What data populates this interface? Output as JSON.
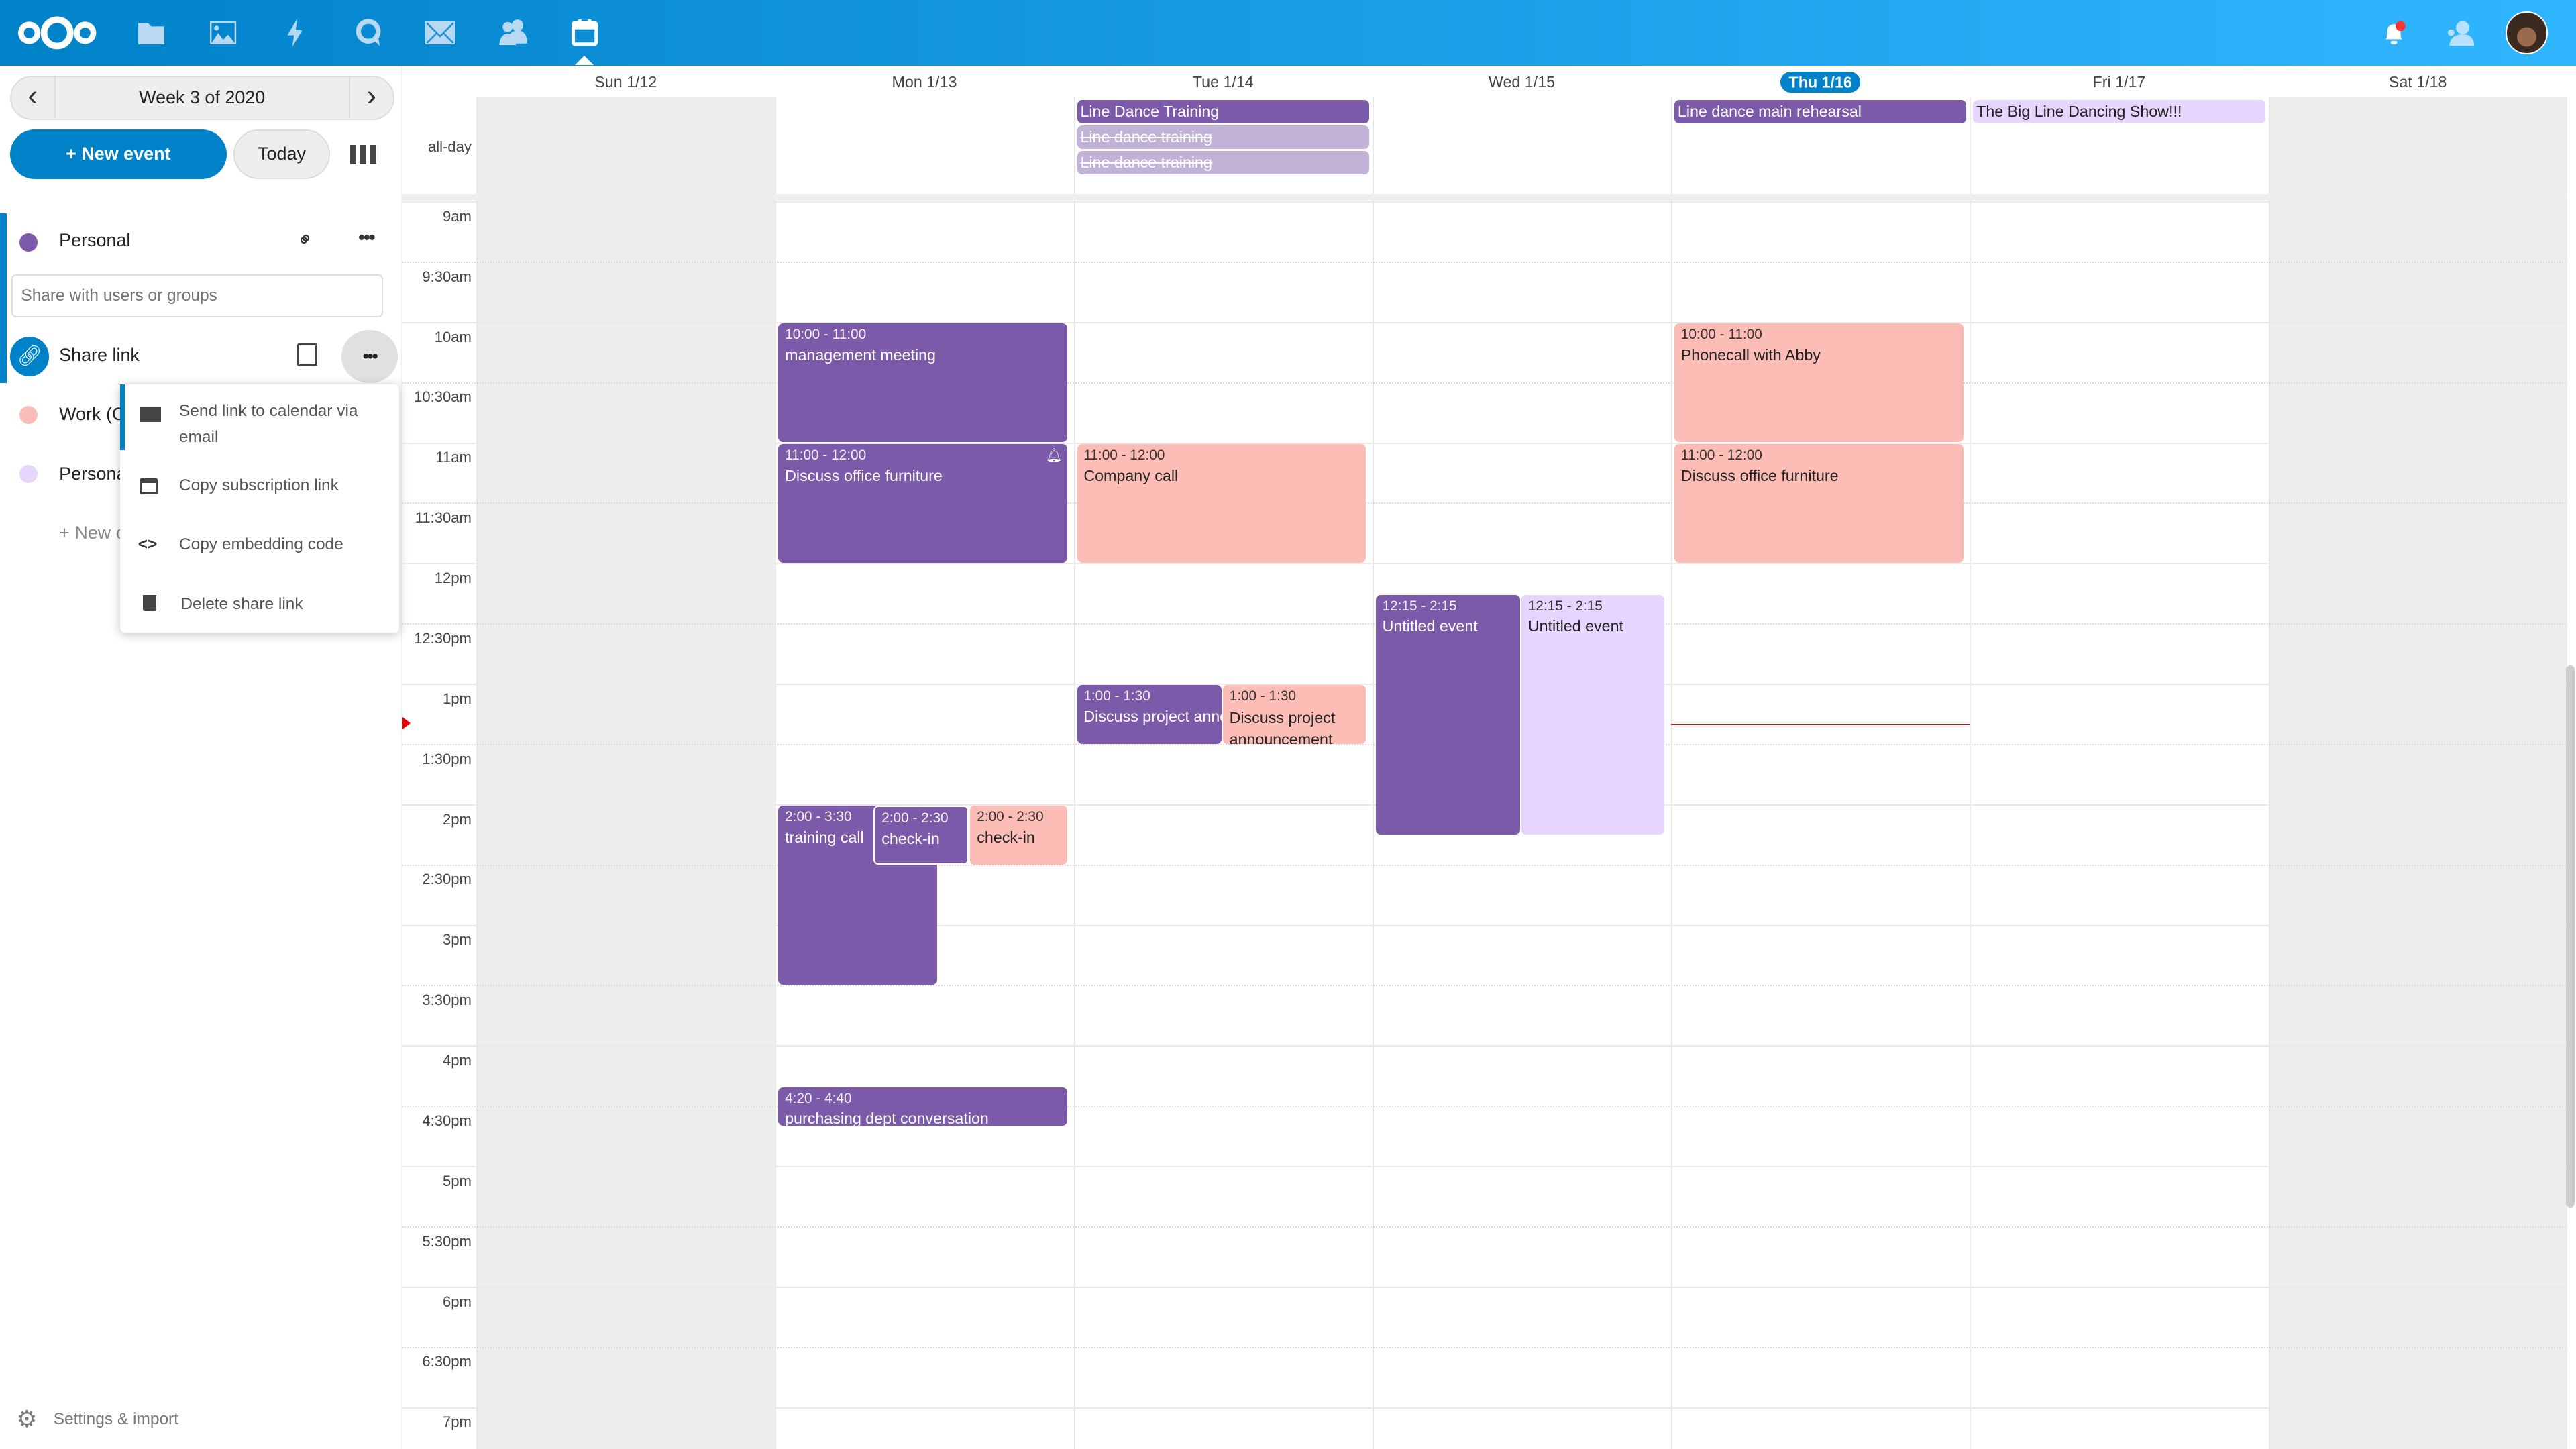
{
  "colors": {
    "accent": "#0082c9",
    "purple": "#7b5ba9",
    "pink": "#fdbdb7",
    "lavender": "#e6d5fc",
    "faded": "#c2b2d8",
    "weekend": "#ededed"
  },
  "header": {
    "apps": [
      "files-icon",
      "photos-icon",
      "activity-icon",
      "talk-icon",
      "mail-icon",
      "contacts-icon",
      "calendar-icon"
    ],
    "right": [
      "notifications-icon",
      "contacts-menu-icon",
      "user-avatar"
    ]
  },
  "sidebar": {
    "week_label": "Week 3 of 2020",
    "new_event": "+ New event",
    "today": "Today",
    "calendars": [
      {
        "name": "Personal",
        "color": "#7b5ba9"
      },
      {
        "name": "Work (C",
        "color": "#fdbdb7"
      },
      {
        "name": "Persona",
        "color": "#e6d5fc"
      }
    ],
    "share_placeholder": "Share with users or groups",
    "share_link": "Share link",
    "new_calendar": "+ New c",
    "menu": [
      "Send link to calendar via email",
      "Copy subscription link",
      "Copy embedding code",
      "Delete share link"
    ],
    "settings": "Settings & import"
  },
  "calendar": {
    "days": [
      "Sun 1/12",
      "Mon 1/13",
      "Tue 1/14",
      "Wed 1/15",
      "Thu 1/16",
      "Fri 1/17",
      "Sat 1/18"
    ],
    "today_index": 4,
    "allday_label": "all-day",
    "hours": [
      "9am",
      "9:30am",
      "10am",
      "10:30am",
      "11am",
      "11:30am",
      "12pm",
      "12:30pm",
      "1pm",
      "1:30pm",
      "2pm",
      "2:30pm",
      "3pm",
      "3:30pm",
      "4pm",
      "4:30pm",
      "5pm",
      "5:30pm",
      "6pm",
      "6:30pm",
      "7pm"
    ],
    "allday_events": [
      {
        "day": 2,
        "row": 0,
        "title": "Line Dance Training",
        "color": "purple",
        "struck": false
      },
      {
        "day": 2,
        "row": 1,
        "title": "Line dance training",
        "color": "faded",
        "struck": true
      },
      {
        "day": 2,
        "row": 2,
        "title": "Line dance training",
        "color": "faded",
        "struck": true
      },
      {
        "day": 4,
        "row": 0,
        "title": "Line dance main rehearsal",
        "color": "purple",
        "struck": false
      },
      {
        "day": 5,
        "row": 0,
        "title": "The Big Line Dancing Show!!!",
        "color": "lavender",
        "struck": false
      }
    ],
    "events": [
      {
        "day": 1,
        "start": "10:00",
        "end": "11:00",
        "time": "10:00 - 11:00",
        "title": "management meeting",
        "color": "purple"
      },
      {
        "day": 1,
        "start": "11:00",
        "end": "12:00",
        "time": "11:00 - 12:00",
        "title": "Discuss office furniture",
        "color": "purple",
        "bell": true
      },
      {
        "day": 1,
        "start": "14:00",
        "end": "15:30",
        "time": "2:00 - 3:30",
        "title": "training call",
        "color": "purple"
      },
      {
        "day": 1,
        "start": "14:00",
        "end": "14:30",
        "time": "2:00 - 2:30",
        "title": "check-in",
        "color": "purple"
      },
      {
        "day": 1,
        "start": "14:00",
        "end": "14:30",
        "time": "2:00 - 2:30",
        "title": "check-in",
        "color": "pink"
      },
      {
        "day": 1,
        "start": "16:20",
        "end": "16:40",
        "time": "4:20 - 4:40",
        "title": "purchasing dept conversation",
        "color": "purple"
      },
      {
        "day": 2,
        "start": "11:00",
        "end": "12:00",
        "time": "11:00 - 12:00",
        "title": "Company call",
        "color": "pink"
      },
      {
        "day": 2,
        "start": "13:00",
        "end": "13:30",
        "time": "1:00 - 1:30",
        "title": "Discuss project announcement",
        "color": "purple"
      },
      {
        "day": 2,
        "start": "13:00",
        "end": "13:30",
        "time": "1:00 - 1:30",
        "title": "Discuss project announcement",
        "color": "pink"
      },
      {
        "day": 3,
        "start": "12:15",
        "end": "14:15",
        "time": "12:15 - 2:15",
        "title": "Untitled event",
        "color": "purple"
      },
      {
        "day": 3,
        "start": "12:15",
        "end": "14:15",
        "time": "12:15 - 2:15",
        "title": "Untitled event",
        "color": "lavender"
      },
      {
        "day": 4,
        "start": "10:00",
        "end": "11:00",
        "time": "10:00 - 11:00",
        "title": "Phonecall with Abby",
        "color": "pink"
      },
      {
        "day": 4,
        "start": "11:00",
        "end": "12:00",
        "time": "11:00 - 12:00",
        "title": "Discuss office furniture",
        "color": "pink"
      }
    ],
    "now": "13:20"
  }
}
